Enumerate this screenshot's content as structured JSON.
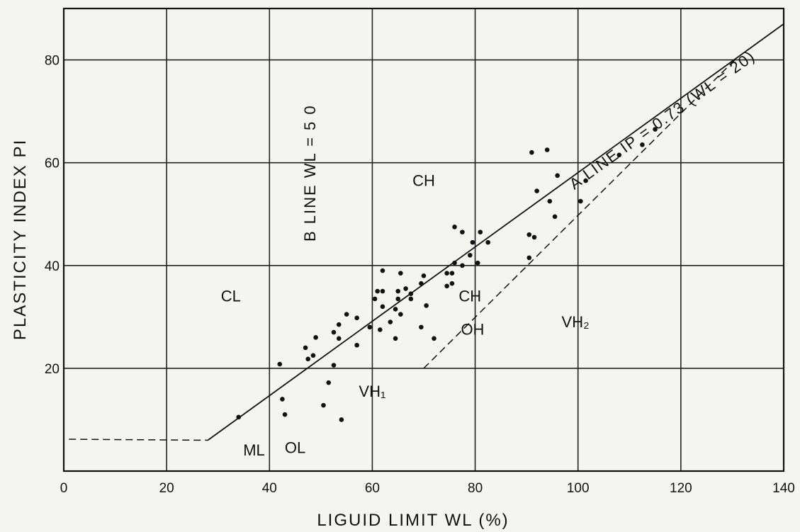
{
  "chart_data": {
    "type": "scatter",
    "title": "",
    "xlabel": "LIGUID  LIMIT    WL  (%)",
    "ylabel": "PLASTICITY  INDEX  PI",
    "xlim": [
      0,
      140
    ],
    "ylim": [
      0,
      90
    ],
    "xticks": [
      0,
      20,
      40,
      60,
      80,
      100,
      120,
      140
    ],
    "xtick_labels": [
      "0",
      "20",
      "40",
      "60",
      "80",
      "100",
      "120",
      "140"
    ],
    "yticks": [
      20,
      40,
      60,
      80
    ],
    "ytick_labels": [
      "20",
      "40",
      "60",
      "80"
    ],
    "grid": true,
    "points": [
      [
        34,
        10.5
      ],
      [
        42,
        20.8
      ],
      [
        42.5,
        14
      ],
      [
        43,
        11
      ],
      [
        47,
        24
      ],
      [
        47.5,
        21.8
      ],
      [
        49,
        26
      ],
      [
        48.5,
        22.5
      ],
      [
        50.5,
        12.8
      ],
      [
        51.5,
        17.2
      ],
      [
        52.5,
        27
      ],
      [
        52.5,
        20.6
      ],
      [
        53.5,
        28.5
      ],
      [
        53.5,
        25.8
      ],
      [
        54,
        10
      ],
      [
        55,
        30.5
      ],
      [
        57,
        29.8
      ],
      [
        57,
        24.5
      ],
      [
        59.5,
        28
      ],
      [
        60.5,
        33.5
      ],
      [
        61,
        35
      ],
      [
        61.5,
        27.5
      ],
      [
        62,
        39
      ],
      [
        62,
        35
      ],
      [
        62,
        32
      ],
      [
        63.5,
        29
      ],
      [
        64.5,
        31.5
      ],
      [
        64.5,
        25.8
      ],
      [
        65,
        33.5
      ],
      [
        65,
        35
      ],
      [
        65.5,
        38.5
      ],
      [
        65.5,
        30.5
      ],
      [
        66.5,
        35.5
      ],
      [
        67.5,
        34.5
      ],
      [
        67.5,
        33.5
      ],
      [
        69.5,
        28
      ],
      [
        69.5,
        36.5
      ],
      [
        70,
        38
      ],
      [
        70.5,
        32.2
      ],
      [
        72,
        25.8
      ],
      [
        74.5,
        38.5
      ],
      [
        74.5,
        36
      ],
      [
        75.5,
        38.5
      ],
      [
        75.5,
        36.5
      ],
      [
        76,
        40.5
      ],
      [
        76,
        47.5
      ],
      [
        77.5,
        46.5
      ],
      [
        77.5,
        40
      ],
      [
        79,
        42
      ],
      [
        79.5,
        44.5
      ],
      [
        80.5,
        40.5
      ],
      [
        81,
        46.5
      ],
      [
        82.5,
        44.5
      ],
      [
        90.5,
        46
      ],
      [
        90.5,
        41.5
      ],
      [
        91,
        62
      ],
      [
        91.5,
        45.5
      ],
      [
        92,
        54.5
      ],
      [
        94,
        62.5
      ],
      [
        94.5,
        52.5
      ],
      [
        95.5,
        49.5
      ],
      [
        96,
        57.5
      ],
      [
        100.5,
        52.5
      ],
      [
        101.5,
        56.5
      ],
      [
        108,
        61.5
      ],
      [
        112.5,
        63.5
      ],
      [
        115,
        66.5
      ]
    ],
    "lines": {
      "a_line": [
        [
          28,
          6
        ],
        [
          140,
          87
        ]
      ],
      "a_line_label": "A LINE IP = 0.73 (WL = 20)",
      "b_line": [
        [
          50,
          0
        ],
        [
          50,
          90
        ]
      ],
      "b_line_label": "B LINE  WL = 5 0",
      "dashed_lower": [
        [
          70,
          20
        ],
        [
          131,
          80.5
        ]
      ],
      "dashed_left": [
        [
          1,
          6.2
        ],
        [
          28,
          6
        ]
      ]
    },
    "annotations": [
      {
        "text": "CL",
        "x": 32.5,
        "y": 33
      },
      {
        "text": "CH",
        "x": 70,
        "y": 55.5
      },
      {
        "text": "CH",
        "x": 79,
        "y": 33
      },
      {
        "text": "OH",
        "x": 79.5,
        "y": 26.5
      },
      {
        "text": "VH₂",
        "x": 99.5,
        "y": 28
      },
      {
        "text": "VH₁",
        "x": 60,
        "y": 14.5
      },
      {
        "text": "ML",
        "x": 37,
        "y": 3
      },
      {
        "text": "OL",
        "x": 45,
        "y": 3.5
      }
    ]
  }
}
